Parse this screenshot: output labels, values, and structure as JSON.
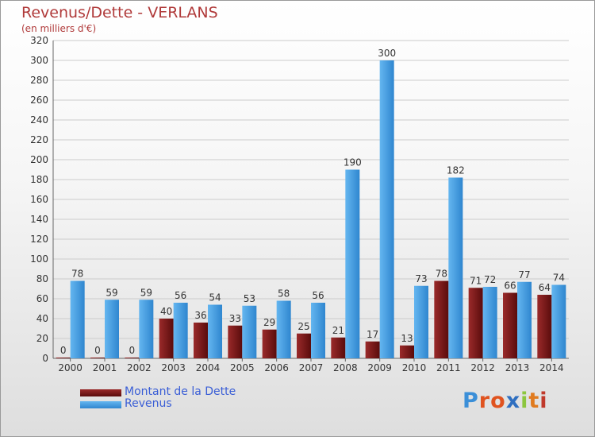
{
  "header": {
    "title": "Revenus/Dette - VERLANS",
    "subtitle": "(en milliers d'€)"
  },
  "legend": {
    "debt_label": "Montant de la Dette",
    "revenue_label": "Revenus"
  },
  "logo": {
    "text": "Proxiti",
    "letters": [
      "P",
      "r",
      "o",
      "x",
      "i",
      "t",
      "i"
    ],
    "colors": [
      "#3b8fd8",
      "#e0531f",
      "#e0531f",
      "#2f6fc0",
      "#8cc63e",
      "#e07b1f",
      "#c0392b"
    ]
  },
  "colors": {
    "title": "#b03a3a",
    "debt": "#7a1414",
    "revenue": "#4aa3e8",
    "legend_text": "#3a5ed6",
    "grid": "#cccccc"
  },
  "chart_data": {
    "type": "bar",
    "title": "Revenus/Dette - VERLANS",
    "subtitle": "(en milliers d'€)",
    "xlabel": "",
    "ylabel": "",
    "categories": [
      "2000",
      "2001",
      "2002",
      "2003",
      "2004",
      "2005",
      "2006",
      "2007",
      "2008",
      "2009",
      "2010",
      "2011",
      "2012",
      "2013",
      "2014"
    ],
    "series": [
      {
        "name": "Montant de la Dette",
        "values": [
          0,
          0,
          0,
          40,
          36,
          33,
          29,
          25,
          21,
          17,
          13,
          78,
          71,
          66,
          64
        ]
      },
      {
        "name": "Revenus",
        "values": [
          78,
          59,
          59,
          56,
          54,
          53,
          58,
          56,
          190,
          300,
          73,
          182,
          72,
          77,
          74
        ]
      }
    ],
    "ylim": [
      0,
      320
    ],
    "yticks": [
      0,
      20,
      40,
      60,
      80,
      100,
      120,
      140,
      160,
      180,
      200,
      220,
      240,
      260,
      280,
      300,
      320
    ],
    "grid": true,
    "legend_position": "bottom-left"
  }
}
